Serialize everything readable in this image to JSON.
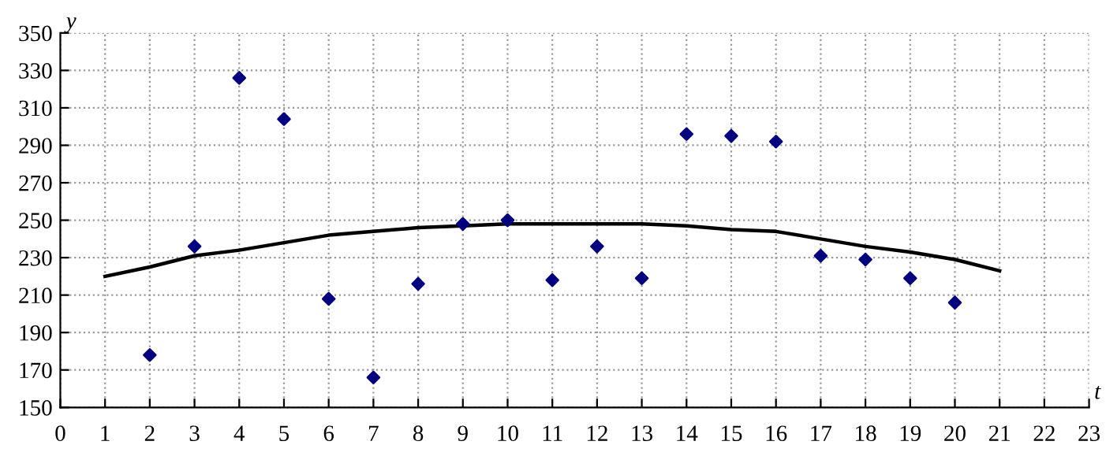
{
  "chart_data": {
    "type": "scatter",
    "xlabel": "t",
    "ylabel": "y",
    "xlim": [
      0,
      23
    ],
    "ylim": [
      150,
      350
    ],
    "xticks": [
      0,
      1,
      2,
      3,
      4,
      5,
      6,
      7,
      8,
      9,
      10,
      11,
      12,
      13,
      14,
      15,
      16,
      17,
      18,
      19,
      20,
      21,
      22,
      23
    ],
    "yticks": [
      150,
      170,
      190,
      210,
      230,
      250,
      270,
      290,
      310,
      330,
      350
    ],
    "grid": true,
    "legend": false,
    "series": [
      {
        "color": "#000080",
        "marker": "diamond",
        "x": [
          2,
          3,
          4,
          5,
          6,
          7,
          8,
          9,
          10,
          11,
          12,
          13,
          14,
          15,
          16,
          17,
          18,
          19,
          20
        ],
        "values": [
          178,
          236,
          326,
          304,
          208,
          166,
          216,
          248,
          250,
          218,
          236,
          219,
          296,
          295,
          292,
          231,
          229,
          219,
          206
        ]
      },
      {
        "type": "line",
        "color": "#000000",
        "marker": "none",
        "line_style": "solid",
        "x": [
          1,
          2,
          3,
          4,
          5,
          6,
          7,
          8,
          9,
          10,
          11,
          12,
          13,
          14,
          15,
          16,
          17,
          18,
          19,
          20,
          21
        ],
        "values": [
          220,
          225,
          231,
          234,
          238,
          242,
          244,
          246,
          247,
          248,
          248,
          248,
          248,
          247,
          245,
          244,
          240,
          236,
          233,
          229,
          223
        ]
      }
    ]
  }
}
